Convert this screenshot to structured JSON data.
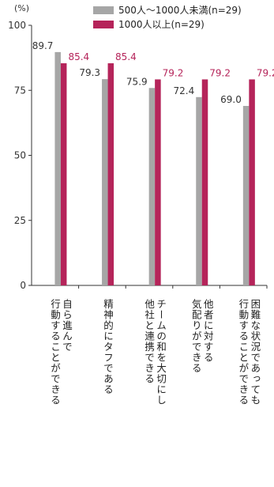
{
  "chart_data": {
    "type": "bar",
    "unit_label": "(%)",
    "ylim": [
      0,
      100
    ],
    "yticks": [
      0,
      25,
      50,
      75,
      100
    ],
    "categories": [
      [
        "自ら進んで",
        "行動することができる"
      ],
      [
        "精神的にタフである"
      ],
      [
        "チームの和を大切にし",
        "他社と連携できる"
      ],
      [
        "他者に対する",
        "気配りができる"
      ],
      [
        "困難な状況であっても",
        "行動することができる"
      ]
    ],
    "series": [
      {
        "name": "500人〜1000人未満(n=29)",
        "color": "#a6a6a6",
        "label_color": "#333333",
        "values": [
          89.7,
          79.3,
          75.9,
          72.4,
          69.0
        ]
      },
      {
        "name": "1000人以上(n=29)",
        "color": "#b5245a",
        "label_color": "#b5245a",
        "values": [
          85.4,
          85.4,
          79.2,
          79.2,
          79.2
        ]
      }
    ]
  }
}
